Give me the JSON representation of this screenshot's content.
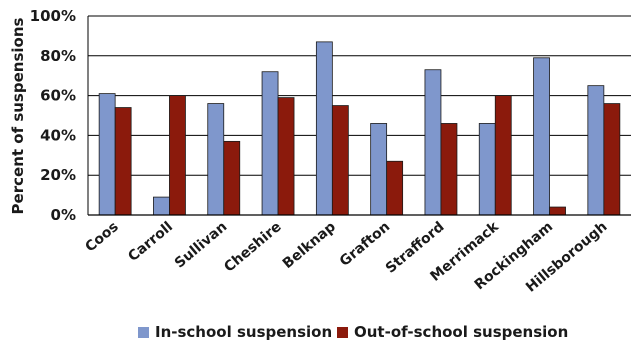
{
  "chart_data": {
    "type": "bar",
    "title": "",
    "xlabel": "",
    "ylabel": "Percent of suspensions",
    "ylim": [
      0,
      100
    ],
    "yticks": [
      "0%",
      "20%",
      "40%",
      "60%",
      "80%",
      "100%"
    ],
    "ytick_values": [
      0,
      20,
      40,
      60,
      80,
      100
    ],
    "grid": true,
    "legend_position": "bottom",
    "categories": [
      "Coos",
      "Carroll",
      "Sullivan",
      "Cheshire",
      "Belknap",
      "Grafton",
      "Strafford",
      "Merrimack",
      "Rockingham",
      "Hillsborough"
    ],
    "series": [
      {
        "name": "In-school suspension",
        "color": "#7f97cc",
        "values": [
          61,
          9,
          56,
          72,
          87,
          46,
          73,
          46,
          79,
          65
        ]
      },
      {
        "name": "Out-of-school suspension",
        "color": "#8b1a0c",
        "values": [
          54,
          60,
          37,
          59,
          55,
          27,
          46,
          60,
          4,
          56
        ]
      }
    ]
  }
}
